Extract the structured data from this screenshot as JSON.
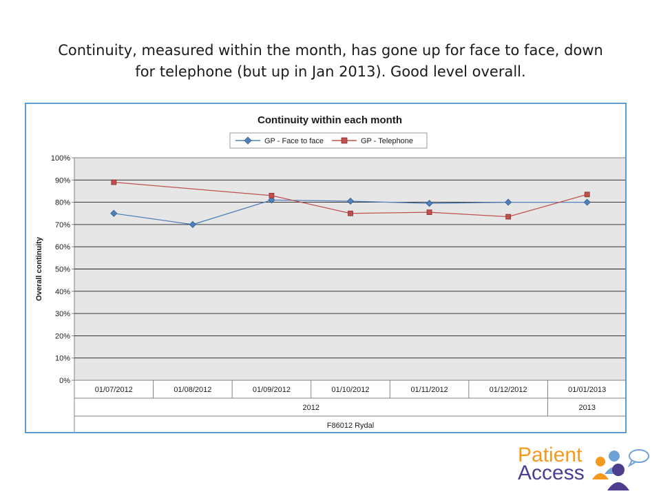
{
  "slide": {
    "title_line1": "Continuity, measured within the month, has gone up for face to face, down",
    "title_line2": "for telephone (but up in Jan 2013).  Good level overall."
  },
  "logo": {
    "line1": "Patient",
    "line2": "Access",
    "colors": {
      "orange": "#f39a1e",
      "purple": "#4e3d8f",
      "blue": "#6fa3d6"
    }
  },
  "chart_data": {
    "type": "line",
    "title": "Continuity within each month",
    "xlabel": "",
    "ylabel": "Overall continuity",
    "ylim": [
      0,
      1
    ],
    "y_ticks": [
      "0%",
      "10%",
      "20%",
      "30%",
      "40%",
      "50%",
      "60%",
      "70%",
      "80%",
      "90%",
      "100%"
    ],
    "categories": [
      "01/07/2012",
      "01/08/2012",
      "01/09/2012",
      "01/10/2012",
      "01/11/2012",
      "01/12/2012",
      "01/01/2013"
    ],
    "year_groups": [
      {
        "label": "2012",
        "count": 6
      },
      {
        "label": "2013",
        "count": 1
      }
    ],
    "practice_label": "F86012 Rydal",
    "grid": true,
    "legend_position": "top",
    "plot_background": "#e6e6e6",
    "series": [
      {
        "name": "GP - Face to face",
        "color": "#4f81bd",
        "marker": "diamond",
        "values": [
          0.75,
          0.7,
          0.81,
          0.805,
          0.795,
          0.8,
          0.8
        ]
      },
      {
        "name": "GP - Telephone",
        "color": "#c0504d",
        "marker": "square",
        "values": [
          0.89,
          null,
          0.83,
          0.75,
          0.755,
          0.735,
          0.835
        ]
      }
    ]
  }
}
